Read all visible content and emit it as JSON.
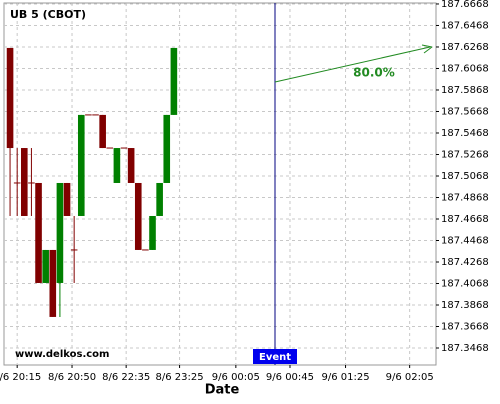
{
  "chart_data": {
    "type": "candlestick",
    "title": "UB 5 (CBOT)",
    "x_label": "Date",
    "watermark": "www.delkos.com",
    "event_label": "Event",
    "annotation": "80.0%",
    "up_color": "#008000",
    "down_color": "#800000",
    "grid": true,
    "x": [
      0,
      1,
      2,
      3,
      4,
      5,
      6,
      7,
      8,
      9,
      10,
      11,
      12,
      13,
      14,
      15,
      16,
      17,
      18,
      19,
      20,
      21,
      22,
      23
    ],
    "open": [
      187.6259,
      187.5003,
      187.5328,
      187.5003,
      187.5003,
      187.4073,
      187.438,
      187.4073,
      187.5003,
      187.438,
      187.4696,
      187.5636,
      187.5636,
      187.5636,
      187.5328,
      187.5003,
      187.5328,
      187.5328,
      187.5003,
      187.438,
      187.438,
      187.4696,
      187.5003,
      187.5636
    ],
    "high": [
      187.6259,
      187.5328,
      187.5328,
      187.5328,
      187.5003,
      187.438,
      187.438,
      187.5003,
      187.5003,
      187.4696,
      187.5636,
      187.5636,
      187.5636,
      187.5636,
      187.5328,
      187.5328,
      187.5328,
      187.5328,
      187.5003,
      187.438,
      187.4696,
      187.5003,
      187.5636,
      187.6259
    ],
    "low": [
      187.4696,
      187.4696,
      187.4696,
      187.4696,
      187.4073,
      187.4073,
      187.3757,
      187.3757,
      187.4696,
      187.4073,
      187.4696,
      187.5636,
      187.5636,
      187.5328,
      187.5328,
      187.5003,
      187.5328,
      187.5003,
      187.438,
      187.438,
      187.438,
      187.4696,
      187.5003,
      187.5636
    ],
    "close": [
      187.5328,
      187.5003,
      187.4696,
      187.5003,
      187.4073,
      187.438,
      187.3757,
      187.5003,
      187.4696,
      187.438,
      187.5636,
      187.5636,
      187.5636,
      187.5328,
      187.5328,
      187.5328,
      187.5328,
      187.5003,
      187.438,
      187.438,
      187.4696,
      187.5003,
      187.5636,
      187.6259
    ],
    "xlim": [
      -0.85,
      59.8
    ],
    "xticks": [
      {
        "value": 1,
        "label": "8/6 20:15"
      },
      {
        "value": 8.7,
        "label": "8/6 20:50"
      },
      {
        "value": 16.3,
        "label": "8/6 22:35"
      },
      {
        "value": 23.8,
        "label": "8/6 23:25"
      },
      {
        "value": 31.7,
        "label": "9/6 00:05"
      },
      {
        "value": 39.3,
        "label": "9/6 00:45"
      },
      {
        "value": 47.1,
        "label": "9/6 01:25"
      },
      {
        "value": 56.1,
        "label": "9/6 02:05"
      }
    ],
    "ylim": [
      187.331,
      187.6677
    ],
    "yticks": [
      187.3468,
      187.3668,
      187.3868,
      187.4068,
      187.4268,
      187.4468,
      187.4668,
      187.4868,
      187.5068,
      187.5268,
      187.5468,
      187.5668,
      187.5868,
      187.6068,
      187.6268,
      187.6468,
      187.6668
    ]
  }
}
